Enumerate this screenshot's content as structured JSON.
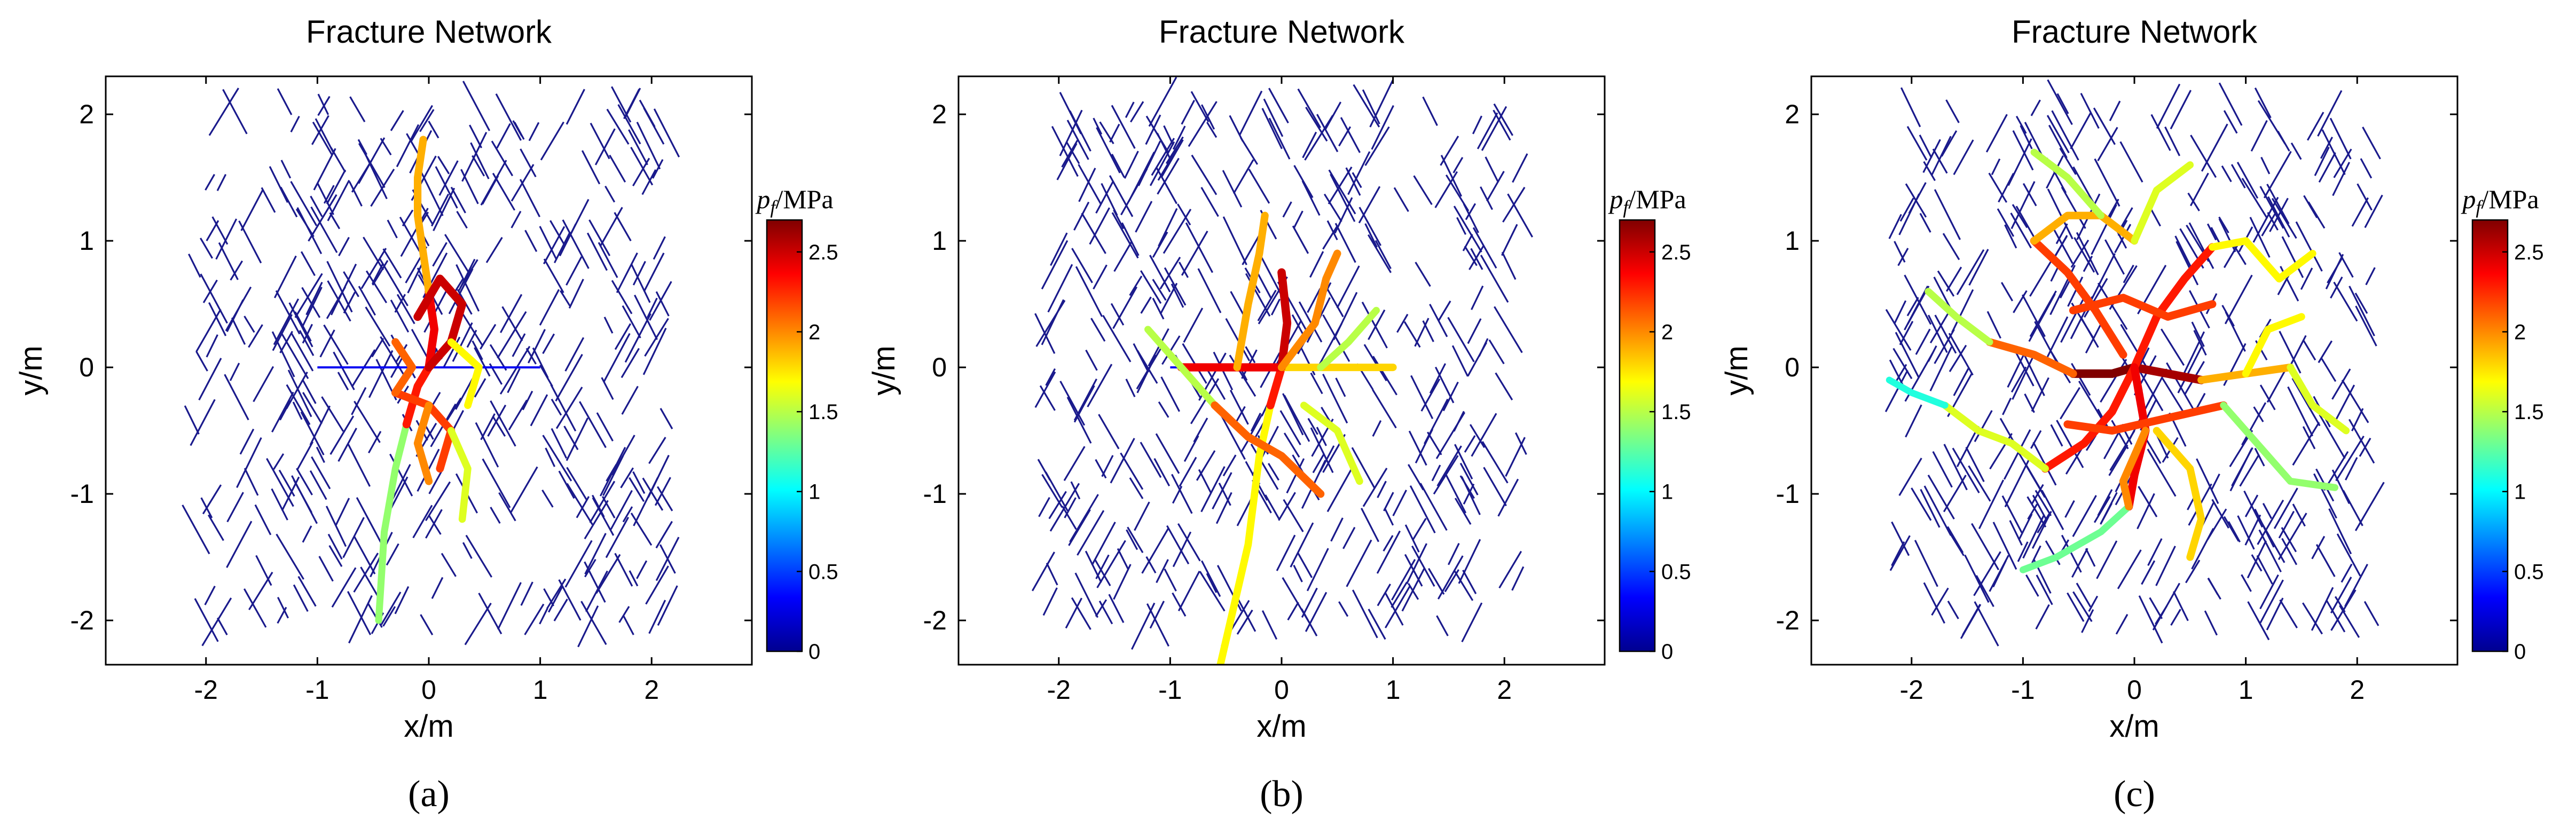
{
  "figure": {
    "panels": [
      {
        "id": "a",
        "title": "Fracture Network",
        "subcaption": "(a)",
        "seed": 11,
        "hydraulic_paths": [
          {
            "pts": [
              [
                -0.45,
                -2.0
              ],
              [
                -0.4,
                -1.3
              ],
              [
                -0.3,
                -0.8
              ],
              [
                -0.2,
                -0.45
              ]
            ],
            "p": 1.4
          },
          {
            "pts": [
              [
                -0.2,
                -0.45
              ],
              [
                -0.1,
                -0.15
              ],
              [
                0.0,
                0.0
              ]
            ],
            "p": 2.3
          },
          {
            "pts": [
              [
                0.0,
                0.0
              ],
              [
                0.05,
                0.3
              ],
              [
                0.0,
                0.6
              ]
            ],
            "p": 2.4
          },
          {
            "pts": [
              [
                0.0,
                0.6
              ],
              [
                -0.05,
                0.9
              ],
              [
                -0.1,
                1.2
              ],
              [
                -0.1,
                1.5
              ],
              [
                -0.05,
                1.8
              ]
            ],
            "p": 1.9
          },
          {
            "pts": [
              [
                -0.1,
                0.4
              ],
              [
                0.1,
                0.7
              ],
              [
                0.3,
                0.5
              ],
              [
                0.2,
                0.2
              ],
              [
                0.0,
                0.0
              ]
            ],
            "p": 2.5
          },
          {
            "pts": [
              [
                -0.3,
                -0.2
              ],
              [
                0.0,
                -0.3
              ],
              [
                0.2,
                -0.5
              ],
              [
                0.1,
                -0.8
              ]
            ],
            "p": 2.2
          },
          {
            "pts": [
              [
                -0.3,
                0.2
              ],
              [
                -0.15,
                0.0
              ],
              [
                -0.3,
                -0.2
              ]
            ],
            "p": 2.1
          },
          {
            "pts": [
              [
                0.2,
                -0.5
              ],
              [
                0.35,
                -0.8
              ],
              [
                0.3,
                -1.2
              ]
            ],
            "p": 1.6
          },
          {
            "pts": [
              [
                0.2,
                0.2
              ],
              [
                0.45,
                0.0
              ],
              [
                0.35,
                -0.3
              ]
            ],
            "p": 1.7
          },
          {
            "pts": [
              [
                0.0,
                -0.3
              ],
              [
                -0.1,
                -0.6
              ],
              [
                0.0,
                -0.9
              ]
            ],
            "p": 2.0
          }
        ],
        "injection_line": {
          "from": [
            -1.0,
            0.0
          ],
          "to": [
            1.0,
            0.0
          ],
          "p": 0.3
        }
      },
      {
        "id": "b",
        "title": "Fracture Network",
        "subcaption": "(b)",
        "seed": 27,
        "hydraulic_paths": [
          {
            "pts": [
              [
                -0.55,
                -2.35
              ],
              [
                -0.3,
                -1.4
              ],
              [
                -0.2,
                -0.7
              ],
              [
                -0.1,
                -0.3
              ]
            ],
            "p": 1.7
          },
          {
            "pts": [
              [
                -0.1,
                -0.3
              ],
              [
                0.0,
                0.0
              ]
            ],
            "p": 2.3
          },
          {
            "pts": [
              [
                -0.9,
                0.0
              ],
              [
                -0.4,
                0.0
              ],
              [
                0.0,
                0.0
              ]
            ],
            "p": 2.4
          },
          {
            "pts": [
              [
                0.0,
                0.0
              ],
              [
                0.45,
                0.0
              ],
              [
                1.0,
                0.0
              ]
            ],
            "p": 1.8
          },
          {
            "pts": [
              [
                -1.2,
                0.3
              ],
              [
                -0.9,
                0.0
              ],
              [
                -0.6,
                -0.3
              ]
            ],
            "p": 1.5
          },
          {
            "pts": [
              [
                0.0,
                0.0
              ],
              [
                0.05,
                0.35
              ],
              [
                0.0,
                0.75
              ]
            ],
            "p": 2.5
          },
          {
            "pts": [
              [
                -0.4,
                0.0
              ],
              [
                -0.3,
                0.5
              ],
              [
                -0.2,
                0.9
              ],
              [
                -0.15,
                1.2
              ]
            ],
            "p": 1.9
          },
          {
            "pts": [
              [
                0.0,
                0.0
              ],
              [
                0.3,
                0.35
              ],
              [
                0.4,
                0.7
              ],
              [
                0.5,
                0.9
              ]
            ],
            "p": 2.0
          },
          {
            "pts": [
              [
                -0.6,
                -0.3
              ],
              [
                -0.3,
                -0.55
              ],
              [
                0.0,
                -0.7
              ],
              [
                0.35,
                -1.0
              ]
            ],
            "p": 2.1
          },
          {
            "pts": [
              [
                0.2,
                -0.3
              ],
              [
                0.5,
                -0.5
              ],
              [
                0.7,
                -0.9
              ]
            ],
            "p": 1.6
          },
          {
            "pts": [
              [
                0.35,
                0.0
              ],
              [
                0.6,
                0.2
              ],
              [
                0.85,
                0.45
              ]
            ],
            "p": 1.5
          }
        ],
        "injection_line": {
          "from": [
            -1.0,
            0.0
          ],
          "to": [
            1.0,
            0.0
          ],
          "p": 0.3
        }
      },
      {
        "id": "c",
        "title": "Fracture Network",
        "subcaption": "(c)",
        "seed": 43,
        "hydraulic_paths": [
          {
            "pts": [
              [
                -0.55,
                -0.05
              ],
              [
                -0.2,
                -0.05
              ],
              [
                0.0,
                0.0
              ]
            ],
            "p": 2.7
          },
          {
            "pts": [
              [
                0.0,
                0.0
              ],
              [
                0.3,
                -0.05
              ],
              [
                0.6,
                -0.1
              ]
            ],
            "p": 2.6
          },
          {
            "pts": [
              [
                -1.3,
                0.2
              ],
              [
                -0.9,
                0.1
              ],
              [
                -0.55,
                -0.05
              ]
            ],
            "p": 2.1
          },
          {
            "pts": [
              [
                0.6,
                -0.1
              ],
              [
                1.0,
                -0.05
              ],
              [
                1.4,
                0.0
              ]
            ],
            "p": 1.9
          },
          {
            "pts": [
              [
                0.0,
                0.0
              ],
              [
                0.2,
                0.4
              ],
              [
                0.45,
                0.7
              ],
              [
                0.7,
                0.95
              ]
            ],
            "p": 2.3
          },
          {
            "pts": [
              [
                -0.1,
                0.1
              ],
              [
                -0.35,
                0.45
              ],
              [
                -0.6,
                0.75
              ],
              [
                -0.9,
                1.0
              ]
            ],
            "p": 2.2
          },
          {
            "pts": [
              [
                0.0,
                0.0
              ],
              [
                -0.2,
                -0.35
              ],
              [
                -0.45,
                -0.6
              ],
              [
                -0.8,
                -0.8
              ]
            ],
            "p": 2.3
          },
          {
            "pts": [
              [
                0.0,
                0.0
              ],
              [
                0.1,
                -0.5
              ],
              [
                0.0,
                -0.85
              ],
              [
                -0.05,
                -1.1
              ]
            ],
            "p": 2.4
          },
          {
            "pts": [
              [
                -0.55,
                0.45
              ],
              [
                -0.1,
                0.55
              ],
              [
                0.3,
                0.4
              ],
              [
                0.7,
                0.5
              ]
            ],
            "p": 2.2
          },
          {
            "pts": [
              [
                -0.6,
                -0.45
              ],
              [
                -0.2,
                -0.5
              ],
              [
                0.3,
                -0.4
              ],
              [
                0.8,
                -0.3
              ]
            ],
            "p": 2.2
          },
          {
            "pts": [
              [
                -0.9,
                1.0
              ],
              [
                -0.6,
                1.2
              ],
              [
                -0.3,
                1.2
              ],
              [
                0.0,
                1.0
              ]
            ],
            "p": 1.9
          },
          {
            "pts": [
              [
                0.7,
                0.95
              ],
              [
                1.0,
                1.0
              ],
              [
                1.3,
                0.7
              ],
              [
                1.6,
                0.9
              ]
            ],
            "p": 1.7
          },
          {
            "pts": [
              [
                -0.8,
                -0.8
              ],
              [
                -1.1,
                -0.6
              ],
              [
                -1.4,
                -0.5
              ],
              [
                -1.7,
                -0.3
              ]
            ],
            "p": 1.6
          },
          {
            "pts": [
              [
                0.8,
                -0.3
              ],
              [
                1.1,
                -0.6
              ],
              [
                1.4,
                -0.9
              ],
              [
                1.8,
                -0.95
              ]
            ],
            "p": 1.4
          },
          {
            "pts": [
              [
                -0.05,
                -1.1
              ],
              [
                -0.3,
                -1.3
              ],
              [
                -0.7,
                -1.5
              ],
              [
                -1.0,
                -1.6
              ]
            ],
            "p": 1.3
          },
          {
            "pts": [
              [
                -1.3,
                0.2
              ],
              [
                -1.6,
                0.4
              ],
              [
                -1.85,
                0.6
              ]
            ],
            "p": 1.5
          },
          {
            "pts": [
              [
                -1.7,
                -0.3
              ],
              [
                -2.0,
                -0.2
              ],
              [
                -2.2,
                -0.1
              ]
            ],
            "p": 1.1
          },
          {
            "pts": [
              [
                0.2,
                -0.5
              ],
              [
                0.5,
                -0.8
              ],
              [
                0.6,
                -1.2
              ],
              [
                0.5,
                -1.5
              ]
            ],
            "p": 1.8
          },
          {
            "pts": [
              [
                0.0,
                1.0
              ],
              [
                0.2,
                1.4
              ],
              [
                0.5,
                1.6
              ]
            ],
            "p": 1.6
          },
          {
            "pts": [
              [
                -0.3,
                1.2
              ],
              [
                -0.6,
                1.5
              ],
              [
                -0.9,
                1.7
              ]
            ],
            "p": 1.5
          },
          {
            "pts": [
              [
                1.4,
                0.0
              ],
              [
                1.6,
                -0.3
              ],
              [
                1.9,
                -0.5
              ]
            ],
            "p": 1.6
          },
          {
            "pts": [
              [
                1.0,
                -0.05
              ],
              [
                1.2,
                0.3
              ],
              [
                1.5,
                0.4
              ]
            ],
            "p": 1.7
          },
          {
            "pts": [
              [
                0.1,
                -0.5
              ],
              [
                -0.1,
                -0.9
              ],
              [
                -0.05,
                -1.1
              ]
            ],
            "p": 2.0
          }
        ],
        "injection_line": null
      }
    ],
    "axes": {
      "xlabel": "x/m",
      "ylabel": "y/m",
      "xlim": [
        -2.9,
        2.9
      ],
      "ylim": [
        -2.35,
        2.3
      ],
      "xticks": [
        -2,
        -1,
        0,
        1,
        2
      ],
      "yticks": [
        -2,
        -1,
        0,
        1,
        2
      ]
    },
    "colorbar": {
      "label_symbol": "p",
      "label_subscript": "f",
      "label_unit": "/MPa",
      "range": [
        0,
        2.7
      ],
      "ticks": [
        "0",
        "0.5",
        "1",
        "1.5",
        "2",
        "2.5"
      ],
      "tick_values": [
        0,
        0.5,
        1,
        1.5,
        2,
        2.5
      ],
      "colormap": "jet"
    },
    "colors": {
      "background_fracture": "#1a1a8c",
      "axes": "#000000"
    }
  },
  "chart_data": [
    {
      "type": "line",
      "title": "Fracture Network",
      "xlabel": "x/m",
      "ylabel": "y/m",
      "xlim": [
        -2.9,
        2.9
      ],
      "ylim": [
        -2.35,
        2.3
      ],
      "colorbar": {
        "label": "p_f /MPa",
        "range": [
          0,
          2.7
        ]
      }
    },
    {
      "type": "line",
      "title": "Fracture Network",
      "xlabel": "x/m",
      "ylabel": "y/m",
      "xlim": [
        -2.9,
        2.9
      ],
      "ylim": [
        -2.35,
        2.3
      ],
      "colorbar": {
        "label": "p_f /MPa",
        "range": [
          0,
          2.7
        ]
      }
    },
    {
      "type": "line",
      "title": "Fracture Network",
      "xlabel": "x/m",
      "ylabel": "y/m",
      "xlim": [
        -2.9,
        2.9
      ],
      "ylim": [
        -2.35,
        2.3
      ],
      "colorbar": {
        "label": "p_f /MPa",
        "range": [
          0,
          2.7
        ]
      }
    }
  ]
}
